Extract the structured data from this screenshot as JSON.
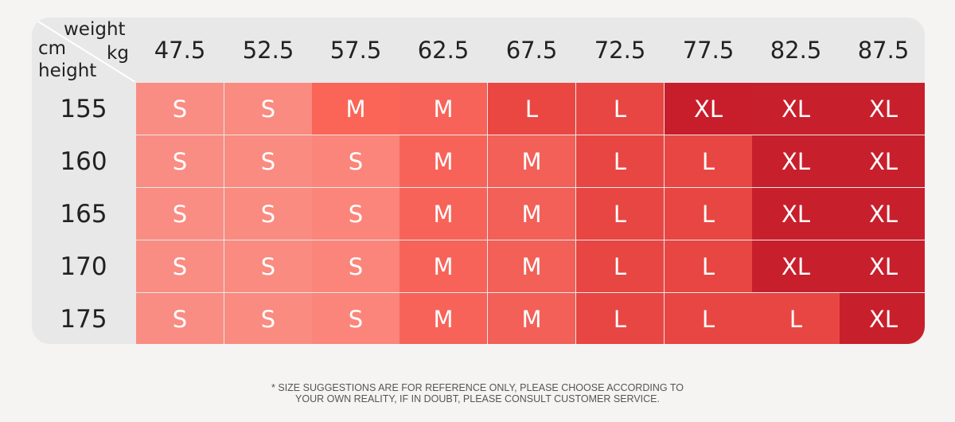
{
  "corner": {
    "weight_label": "weight",
    "kg_label": "kg",
    "cm_label": "cm",
    "height_label": "height"
  },
  "weights": [
    "47.5",
    "52.5",
    "57.5",
    "62.5",
    "67.5",
    "72.5",
    "77.5",
    "82.5",
    "87.5"
  ],
  "rows": [
    {
      "height": "155",
      "sizes": [
        "S",
        "S",
        "M",
        "M",
        "L",
        "L",
        "XL",
        "XL",
        "XL"
      ]
    },
    {
      "height": "160",
      "sizes": [
        "S",
        "S",
        "S",
        "M",
        "M",
        "L",
        "L",
        "XL",
        "XL"
      ]
    },
    {
      "height": "165",
      "sizes": [
        "S",
        "S",
        "S",
        "M",
        "M",
        "L",
        "L",
        "XL",
        "XL"
      ]
    },
    {
      "height": "170",
      "sizes": [
        "S",
        "S",
        "S",
        "M",
        "M",
        "L",
        "L",
        "XL",
        "XL"
      ]
    },
    {
      "height": "175",
      "sizes": [
        "S",
        "S",
        "S",
        "M",
        "M",
        "L",
        "L",
        "L",
        "XL"
      ]
    }
  ],
  "colors": {
    "background": "#f5f4f3",
    "table_header": "#e8e8e8",
    "S_light": "#f98b82",
    "S_alt": "#fb8677",
    "M_dark": "#fb6558",
    "M": "#f56259",
    "L_light": "#ef4f4b",
    "L": "#e84643",
    "XL": "#c81f2c"
  },
  "note": {
    "line1": "* SIZE SUGGESTIONS ARE FOR REFERENCE ONLY, PLEASE CHOOSE ACCORDING TO",
    "line2": "YOUR OWN REALITY, IF IN DOUBT, PLEASE CONSULT CUSTOMER SERVICE."
  }
}
